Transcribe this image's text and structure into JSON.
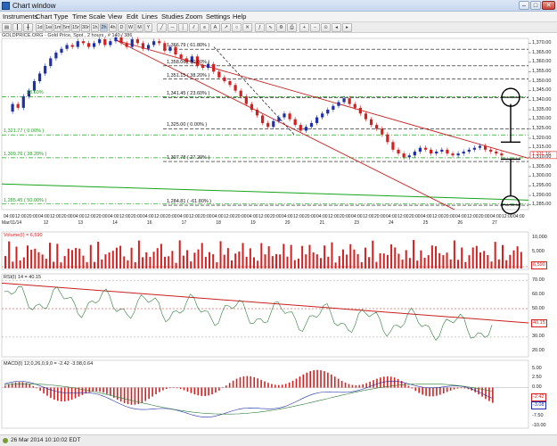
{
  "window": {
    "title": "Chart window"
  },
  "menu": [
    "Instruments",
    "Chart Type",
    "Time Scale",
    "View",
    "Edit",
    "Lines",
    "Studies",
    "Zoom",
    "Settings",
    "Help"
  ],
  "toolbar": {
    "time_buttons": [
      "1d",
      "1w",
      "1m",
      "5m",
      "15m",
      "30m",
      "1h",
      "2h",
      "4h",
      "D",
      "W",
      "M",
      "Y"
    ]
  },
  "chart_info": "GOLDPRICE.ORG - Gold Price, Spot , 2 hours , # 140 / 386",
  "price_axis": [
    "1,370.00",
    "1,365.00",
    "1,360.00",
    "1,355.00",
    "1,350.00",
    "1,345.00",
    "1,340.00",
    "1,335.00",
    "1,330.00",
    "1,325.00",
    "1,320.00",
    "1,315.00",
    "1,310.00",
    "1,305.00",
    "1,300.00",
    "1,295.00",
    "1,290.00",
    "1,285.00"
  ],
  "current_price": "1,311.16",
  "fib_levels": [
    {
      "label": "1,366.79 ( 61.80% )",
      "price": 1366.79
    },
    {
      "label": "1,358.06 ( 50.00% )",
      "price": 1358.06
    },
    {
      "label": "1,351.15 ( 38.20% )",
      "price": 1351.15
    },
    {
      "label": "1,341.45 ( 23.60% )",
      "price": 1341.45
    },
    {
      "label": "1,325.00 ( 0.00% )",
      "price": 1325.0
    },
    {
      "label": "1,307.78 ( 27.20% )",
      "price": 1307.78
    },
    {
      "label": "1,284.81 ( -61.80% )",
      "price": 1284.81
    }
  ],
  "green_levels": [
    {
      "label": "23.60%",
      "price": 1341.8
    },
    {
      "label": "1,321.77 ( 0.00% )",
      "price": 1321.77
    },
    {
      "label": "1,309.76 ( 38.20% )",
      "price": 1309.76
    },
    {
      "label": "1,285.45 ( 50.00% )",
      "price": 1285.45
    }
  ],
  "time_axis": {
    "times": [
      "04:00",
      "12:00",
      "20:00",
      "04:00",
      "12:00",
      "20:00",
      "04:00",
      "12:00",
      "20:00",
      "04:00",
      "12:00",
      "20:00",
      "04:00",
      "12:00",
      "20:00",
      "04:00",
      "12:00",
      "20:00",
      "04:00",
      "12:00",
      "20:00",
      "04:00",
      "12:00",
      "20:00",
      "04:00",
      "12:00",
      "20:00",
      "04:00",
      "12:00",
      "20:00",
      "04:00",
      "12:00",
      "20:00",
      "04:00",
      "12:00",
      "20:00",
      "04:00",
      "12:00",
      "20:00",
      "04:00",
      "12:00",
      "20:00",
      "04:00",
      "12:00",
      "04:00"
    ],
    "dates": [
      "Mar/11/14",
      "12",
      "13",
      "14",
      "16",
      "17",
      "18",
      "19",
      "20",
      "21",
      "23",
      "24",
      "25",
      "26",
      "27"
    ]
  },
  "volume": {
    "label": "Volume(I) = 6,590",
    "value": "6,590",
    "axis": [
      "10,000",
      "5,000"
    ]
  },
  "rsi": {
    "label": "RSI(I) 14 = 40.15",
    "value": "40.15",
    "axis": [
      "70.00",
      "60.00",
      "50.00",
      "40.00",
      "30.00",
      "20.00"
    ]
  },
  "macd": {
    "label": "MACD(I) 12,0,26,0,9,0 = -2.42 -3.08,0.64",
    "value": "-2.42",
    "value2": "-3.08",
    "axis": [
      "5.00",
      "2.50",
      "0.00",
      "-2.50",
      "-5.00",
      "-7.50",
      "-10.00"
    ]
  },
  "status": {
    "text": "26 Mar 2014 10:10:02 EDT"
  },
  "colors": {
    "up": "#1f2fa8",
    "down": "#d42020",
    "channel": "#c81e1e",
    "green": "#17a31a",
    "volume": "#d42020"
  }
}
